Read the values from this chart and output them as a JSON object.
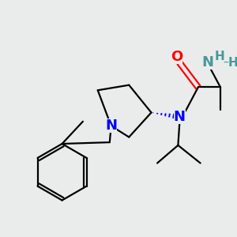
{
  "bg_color": "#eaecec",
  "atom_colors": {
    "N": "#0000ff",
    "O": "#ff0000",
    "NH2_N": "#4a9898",
    "NH2_H": "#4a9898",
    "C": "#000000"
  },
  "bond_lw": 1.6,
  "font_size_atom": 13,
  "font_size_h": 11
}
